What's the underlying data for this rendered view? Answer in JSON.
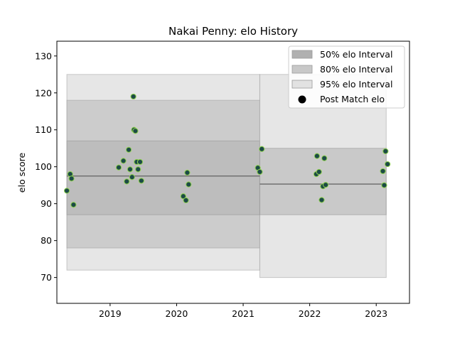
{
  "chart_data": {
    "type": "scatter",
    "title": "Nakai Penny: elo History",
    "xlabel": "",
    "ylabel": "elo score",
    "xlim": [
      2018.2,
      2023.5
    ],
    "ylim": [
      63,
      134
    ],
    "x_ticks": [
      2019,
      2020,
      2021,
      2022,
      2023
    ],
    "y_ticks": [
      70,
      80,
      90,
      100,
      110,
      120,
      130
    ],
    "grid": false,
    "legend_position": "top-right",
    "legend": [
      {
        "label": "50% elo Interval",
        "kind": "band",
        "color": "#b0b0b0"
      },
      {
        "label": "80% elo Interval",
        "kind": "band",
        "color": "#c8c8c8"
      },
      {
        "label": "95% elo Interval",
        "kind": "band",
        "color": "#e2e2e2"
      },
      {
        "label": "Post Match elo",
        "kind": "marker",
        "color": "#000000"
      }
    ],
    "colors": {
      "band50": "#b0b0b0",
      "band80": "#c6c6c6",
      "band95": "#e0e0e0",
      "point_fill": "#1c4b46",
      "point_edge": "#8fd14f",
      "mean_line": "#707070",
      "band_edge": "#9a9a9a"
    },
    "intervals": [
      {
        "x_start": 2018.35,
        "x_end": 2021.25,
        "mean": 97.5,
        "band50": [
          87,
          107
        ],
        "band80": [
          78,
          118
        ],
        "band95": [
          72,
          125
        ]
      },
      {
        "x_start": 2021.25,
        "x_end": 2023.15,
        "mean": 95.3,
        "band50": [
          87,
          105
        ],
        "band95": [
          70,
          125
        ]
      }
    ],
    "points": [
      {
        "x": 2018.35,
        "y": 93.5
      },
      {
        "x": 2018.4,
        "y": 98.0
      },
      {
        "x": 2018.42,
        "y": 96.8
      },
      {
        "x": 2018.45,
        "y": 89.7
      },
      {
        "x": 2019.13,
        "y": 99.8
      },
      {
        "x": 2019.2,
        "y": 101.6
      },
      {
        "x": 2019.25,
        "y": 96.0
      },
      {
        "x": 2019.28,
        "y": 104.6
      },
      {
        "x": 2019.3,
        "y": 99.3
      },
      {
        "x": 2019.33,
        "y": 97.2
      },
      {
        "x": 2019.35,
        "y": 119.0
      },
      {
        "x": 2019.36,
        "y": 110.0
      },
      {
        "x": 2019.38,
        "y": 109.7
      },
      {
        "x": 2019.4,
        "y": 101.3
      },
      {
        "x": 2019.42,
        "y": 99.3
      },
      {
        "x": 2019.45,
        "y": 101.3
      },
      {
        "x": 2019.47,
        "y": 96.2
      },
      {
        "x": 2020.1,
        "y": 92.0
      },
      {
        "x": 2020.14,
        "y": 90.9
      },
      {
        "x": 2020.16,
        "y": 98.4
      },
      {
        "x": 2020.18,
        "y": 95.2
      },
      {
        "x": 2021.22,
        "y": 99.7
      },
      {
        "x": 2021.25,
        "y": 98.6
      },
      {
        "x": 2021.28,
        "y": 104.8
      },
      {
        "x": 2022.1,
        "y": 98.0
      },
      {
        "x": 2022.11,
        "y": 102.9
      },
      {
        "x": 2022.14,
        "y": 98.6
      },
      {
        "x": 2022.18,
        "y": 91.0
      },
      {
        "x": 2022.2,
        "y": 94.7
      },
      {
        "x": 2022.22,
        "y": 102.3
      },
      {
        "x": 2022.24,
        "y": 95.1
      },
      {
        "x": 2023.1,
        "y": 98.8
      },
      {
        "x": 2023.12,
        "y": 95.0
      },
      {
        "x": 2023.14,
        "y": 104.2
      },
      {
        "x": 2023.17,
        "y": 100.7
      }
    ]
  }
}
